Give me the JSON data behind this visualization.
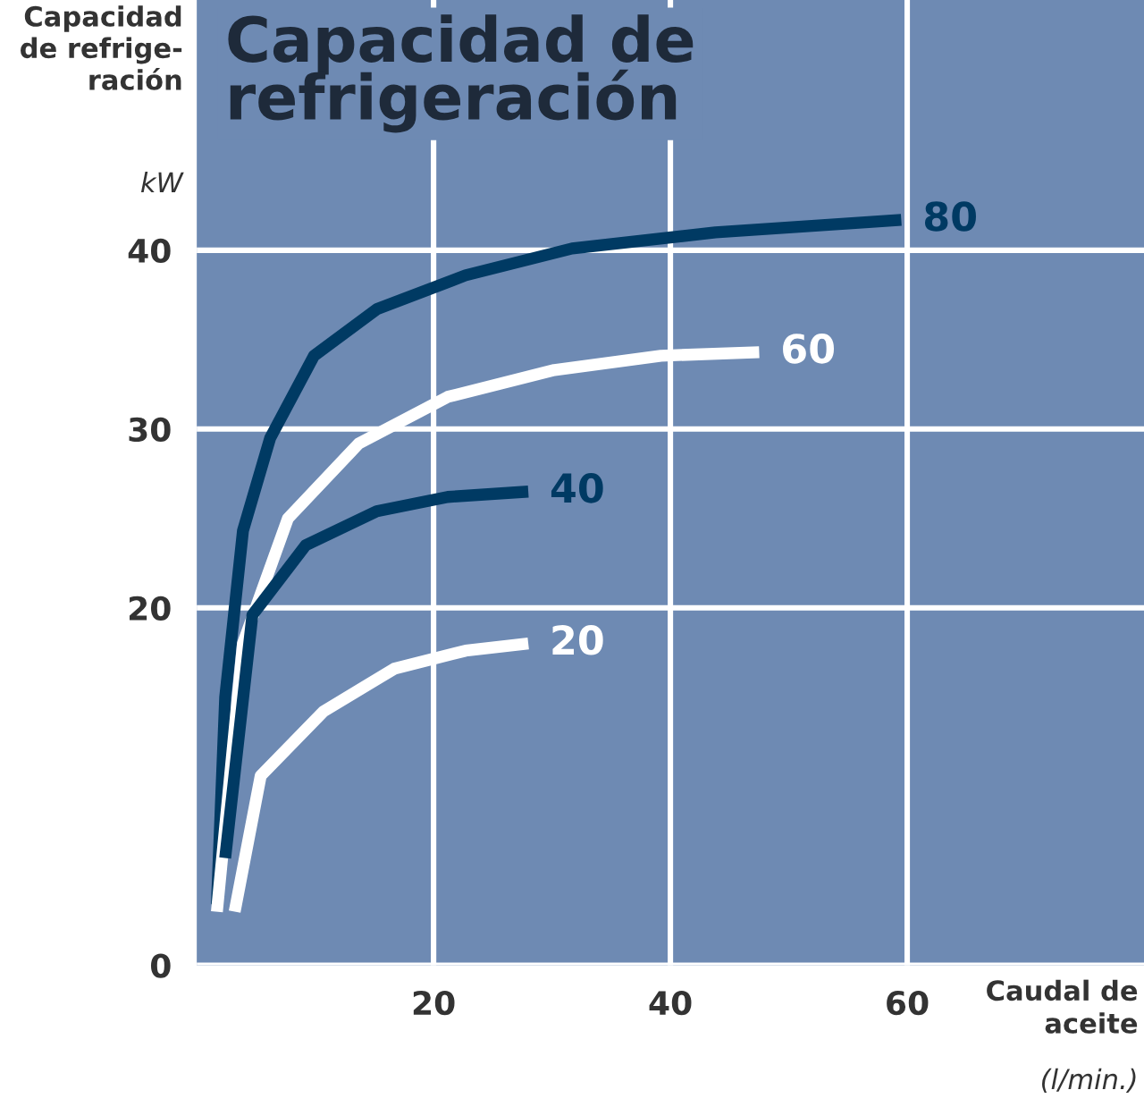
{
  "chart_data": {
    "type": "line",
    "title": "Capacidad de\nrefrigeración",
    "ylabel": "Capacidad\nde refrige-\nración\nkW",
    "xlabel": "Caudal de\naceite\n(l/min.)",
    "xlim": [
      0,
      80
    ],
    "xticks": [
      20,
      40,
      60
    ],
    "ylim": [
      0,
      54
    ],
    "yticks": [
      0,
      20,
      30,
      40
    ],
    "grid": true,
    "legend": false,
    "marker": "none",
    "line_style": "solid",
    "series": [
      {
        "name": "80",
        "color": "#003a63",
        "x": [
          1.7,
          2.4,
          3.9,
          6.2,
          9.9,
          15.2,
          22.7,
          31.7,
          43.8,
          52.8,
          59.5
        ],
        "values": [
          3.4,
          15,
          24.3,
          29.5,
          34.1,
          36.7,
          38.6,
          40.1,
          41,
          41.4,
          41.7
        ]
      },
      {
        "name": "60",
        "color": "#ffffff",
        "x": [
          1.7,
          3.9,
          7.7,
          13.7,
          21.2,
          30.2,
          39.2,
          47.5
        ],
        "values": [
          3,
          18,
          25,
          29.2,
          31.8,
          33.3,
          34.1,
          34.3
        ]
      },
      {
        "name": "40",
        "color": "#003a63",
        "x": [
          2.4,
          4.7,
          9.2,
          15.2,
          21.2,
          28
        ],
        "values": [
          6,
          19.6,
          23.5,
          25.4,
          26.2,
          26.5
        ]
      },
      {
        "name": "20",
        "color": "#ffffff",
        "x": [
          3.2,
          5.4,
          10.7,
          16.7,
          22.7,
          28
        ],
        "values": [
          3,
          10.6,
          14.2,
          16.6,
          17.6,
          18
        ]
      }
    ]
  }
}
